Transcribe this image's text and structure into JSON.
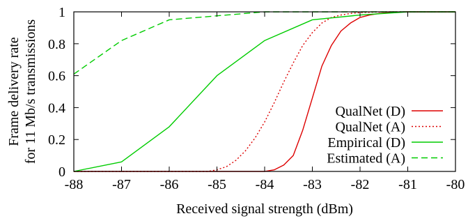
{
  "chart_data": {
    "type": "line",
    "xlabel": "Received signal strength (dBm)",
    "ylabel_lines": [
      "Frame delivery rate",
      "for 11 Mb/s transmissions"
    ],
    "xlim": [
      -88,
      -80
    ],
    "ylim": [
      0,
      1
    ],
    "xticks": [
      "-88",
      "-87",
      "-86",
      "-85",
      "-84",
      "-83",
      "-82",
      "-81",
      "-80"
    ],
    "yticks": [
      "0",
      "0.2",
      "0.4",
      "0.6",
      "0.8",
      "1"
    ],
    "grid": false,
    "legend_position": "lower-right",
    "series": [
      {
        "name": "QualNet (D)",
        "color": "#dd0000",
        "dash": "solid",
        "x": [
          -88,
          -84,
          -83.8,
          -83.6,
          -83.4,
          -83.2,
          -83.0,
          -82.8,
          -82.6,
          -82.4,
          -82.2,
          -82.0,
          -81.8,
          -81.6,
          -81.4,
          -81.2,
          -81.0,
          -80.5,
          -80
        ],
        "y": [
          0,
          0,
          0.01,
          0.04,
          0.1,
          0.26,
          0.46,
          0.66,
          0.79,
          0.88,
          0.93,
          0.965,
          0.98,
          0.99,
          0.995,
          0.998,
          1.0,
          1.0,
          1.0
        ]
      },
      {
        "name": "QualNet (A)",
        "color": "#dd0000",
        "dash": "dotted",
        "x": [
          -88,
          -85.2,
          -85.0,
          -84.8,
          -84.6,
          -84.4,
          -84.2,
          -84.0,
          -83.8,
          -83.6,
          -83.4,
          -83.2,
          -83.0,
          -82.8,
          -82.6,
          -82.4,
          -82.2,
          -82.0,
          -81.5,
          -81.0,
          -80
        ],
        "y": [
          0,
          0,
          0.01,
          0.03,
          0.07,
          0.13,
          0.21,
          0.31,
          0.43,
          0.56,
          0.68,
          0.79,
          0.87,
          0.93,
          0.965,
          0.98,
          0.99,
          0.995,
          1.0,
          1.0,
          1.0
        ]
      },
      {
        "name": "Empirical (D)",
        "color": "#00cc00",
        "dash": "solid",
        "x": [
          -88,
          -87,
          -86,
          -85,
          -84,
          -83,
          -82,
          -81,
          -80
        ],
        "y": [
          0,
          0.06,
          0.28,
          0.6,
          0.82,
          0.95,
          0.98,
          1.0,
          1.0
        ]
      },
      {
        "name": "Estimated (A)",
        "color": "#00cc00",
        "dash": "dashed",
        "x": [
          -88,
          -87,
          -86,
          -85,
          -84,
          -83,
          -82,
          -81,
          -80
        ],
        "y": [
          0.61,
          0.82,
          0.95,
          0.975,
          1.0,
          1.0,
          1.0,
          1.0,
          1.0
        ]
      }
    ]
  }
}
